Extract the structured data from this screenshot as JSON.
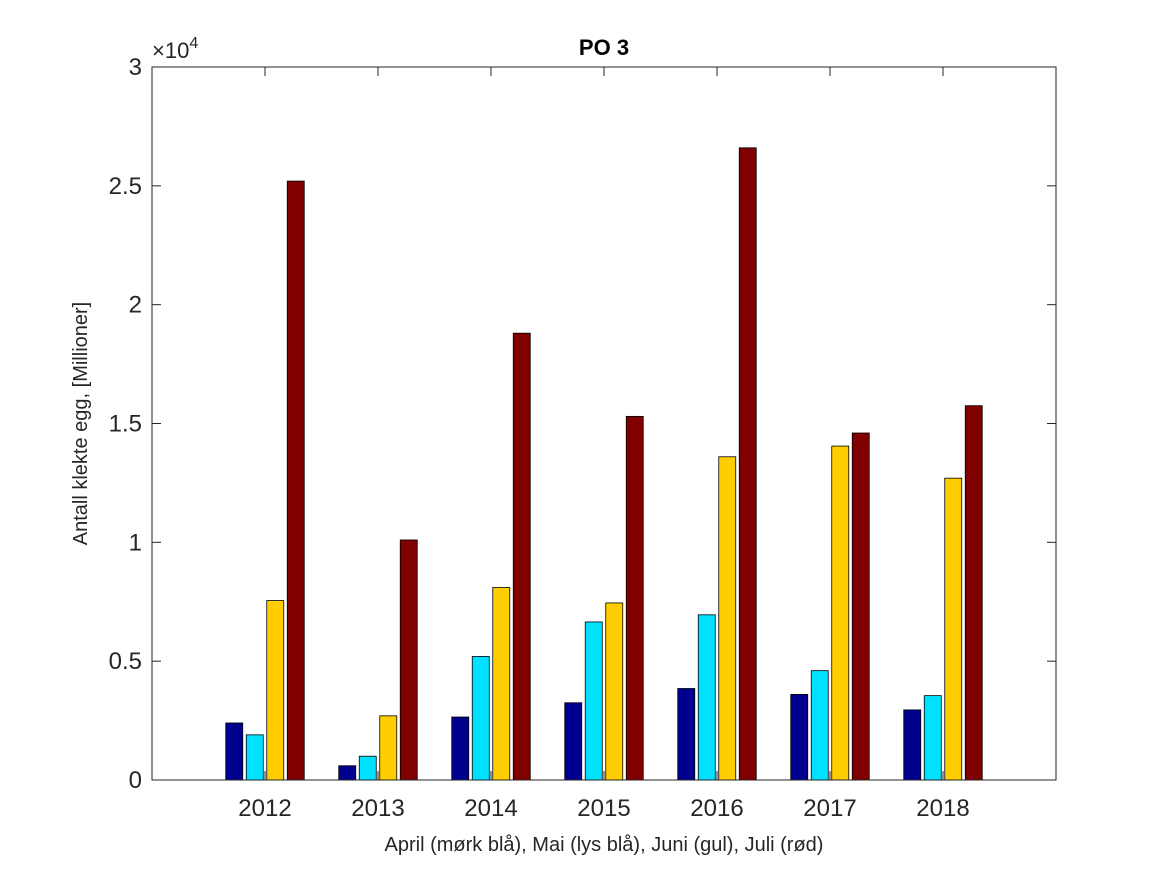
{
  "chart_data": {
    "type": "bar",
    "title": "PO 3",
    "xlabel": "April (mørk blå), Mai (lys blå), Juni (gul), Juli (rød)",
    "ylabel": "Antall klekte egg, [Millioner]",
    "exponent_label": {
      "prefix": "×10",
      "power": "4"
    },
    "categories": [
      "2012",
      "2013",
      "2014",
      "2015",
      "2016",
      "2017",
      "2018"
    ],
    "series": [
      {
        "color": "#00008F",
        "values": [
          2400,
          600,
          2650,
          3250,
          3850,
          3600,
          2950
        ]
      },
      {
        "color": "#00E1FF",
        "values": [
          1900,
          1000,
          5200,
          6650,
          6950,
          4600,
          3550
        ]
      },
      {
        "color": "#FFCE00",
        "values": [
          7550,
          2700,
          8100,
          7450,
          13600,
          14050,
          12700
        ]
      },
      {
        "color": "#800000",
        "values": [
          25200,
          10100,
          18800,
          15300,
          26600,
          14600,
          15750
        ]
      }
    ],
    "ylim": [
      0,
      30000
    ],
    "yticks": [
      0,
      5000,
      10000,
      15000,
      20000,
      25000,
      30000
    ],
    "ytick_labels": [
      "0",
      "0.5",
      "1",
      "1.5",
      "2",
      "2.5",
      "3"
    ],
    "xlim": [
      0,
      8
    ],
    "grid": false,
    "legend": "none"
  }
}
